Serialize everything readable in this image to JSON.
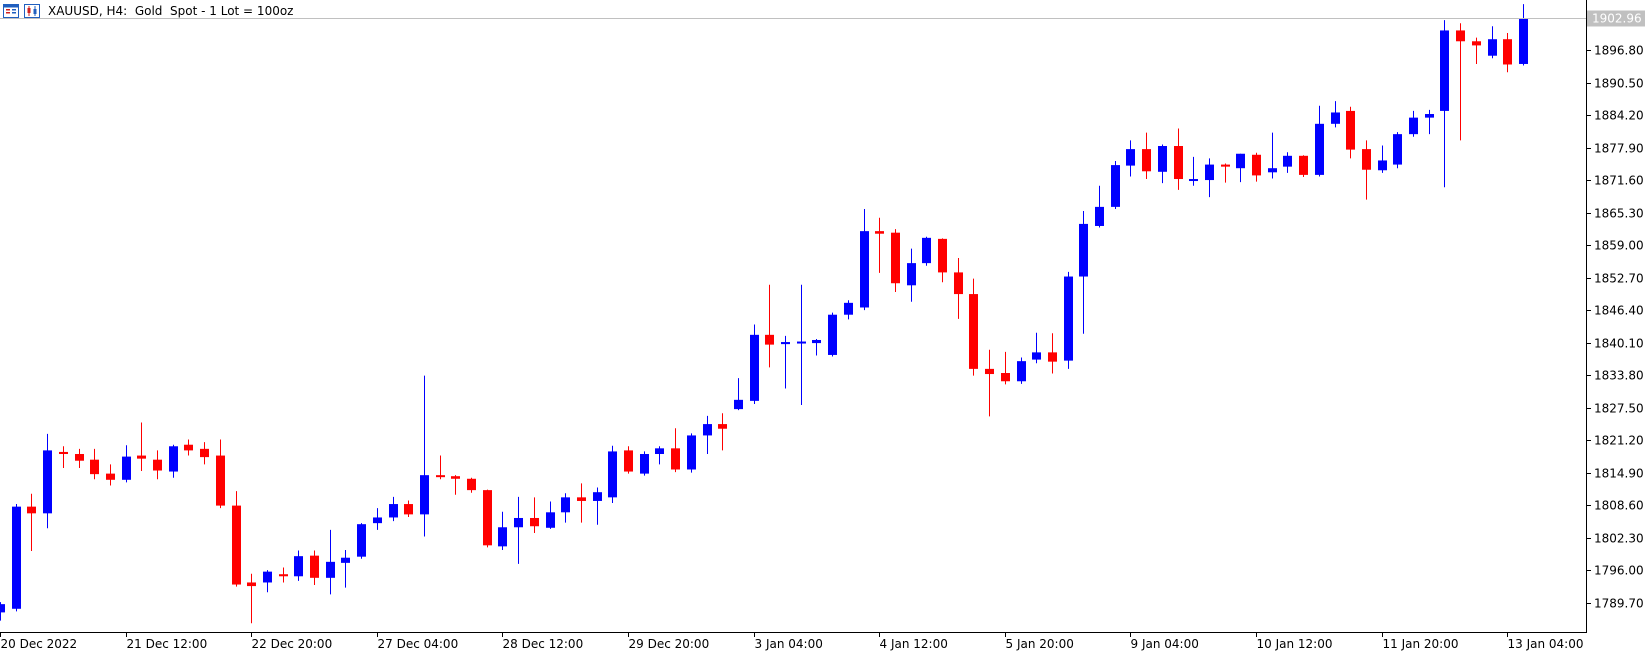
{
  "header": {
    "title": "XAUUSD, H4:  Gold  Spot - 1 Lot = 100oz"
  },
  "colors": {
    "bull": "#0000ff",
    "bear": "#ff0000",
    "axis": "#000000",
    "price_tag_bg": "#c0c0c0"
  },
  "chart_data": {
    "type": "candlestick",
    "title": "XAUUSD, H4:  Gold  Spot - 1 Lot = 100oz",
    "ylim": [
      1784.0,
      1906.5
    ],
    "grid": false,
    "current_price": "1902.96",
    "y_ticks": [
      "1896.80",
      "1890.50",
      "1884.20",
      "1877.90",
      "1871.60",
      "1865.30",
      "1859.00",
      "1852.70",
      "1846.40",
      "1840.10",
      "1833.80",
      "1827.50",
      "1821.20",
      "1814.90",
      "1808.60",
      "1802.30",
      "1796.00",
      "1789.70"
    ],
    "x_ticks": [
      {
        "index": 0,
        "label": "20 Dec 2022"
      },
      {
        "index": 8,
        "label": "21 Dec 12:00"
      },
      {
        "index": 16,
        "label": "22 Dec 20:00"
      },
      {
        "index": 24,
        "label": "27 Dec 04:00"
      },
      {
        "index": 32,
        "label": "28 Dec 12:00"
      },
      {
        "index": 40,
        "label": "29 Dec 20:00"
      },
      {
        "index": 48,
        "label": "3 Jan 04:00"
      },
      {
        "index": 56,
        "label": "4 Jan 12:00"
      },
      {
        "index": 64,
        "label": "5 Jan 20:00"
      },
      {
        "index": 72,
        "label": "9 Jan 04:00"
      },
      {
        "index": 80,
        "label": "10 Jan 12:00"
      },
      {
        "index": 88,
        "label": "11 Jan 20:00"
      },
      {
        "index": 96,
        "label": "13 Jan 04:00"
      }
    ],
    "candles": [
      [
        1787.8,
        1789.4,
        1786.2,
        1789.8
      ],
      [
        1788.5,
        1808.3,
        1788.0,
        1808.8
      ],
      [
        1808.3,
        1807.0,
        1799.7,
        1810.8
      ],
      [
        1807.0,
        1819.2,
        1804.1,
        1822.4
      ],
      [
        1818.9,
        1818.5,
        1815.8,
        1820.0
      ],
      [
        1818.5,
        1817.2,
        1815.8,
        1819.5
      ],
      [
        1817.4,
        1814.6,
        1813.6,
        1819.5
      ],
      [
        1814.7,
        1813.5,
        1812.4,
        1816.5
      ],
      [
        1813.5,
        1818.0,
        1813.0,
        1820.2
      ],
      [
        1818.2,
        1817.6,
        1815.2,
        1824.6
      ],
      [
        1817.4,
        1815.3,
        1813.6,
        1819.2
      ],
      [
        1815.1,
        1820.0,
        1813.9,
        1820.3
      ],
      [
        1820.3,
        1819.2,
        1818.2,
        1821.3
      ],
      [
        1819.5,
        1817.9,
        1816.5,
        1820.8
      ],
      [
        1818.2,
        1808.5,
        1808.0,
        1821.3
      ],
      [
        1808.5,
        1793.2,
        1792.8,
        1811.3
      ],
      [
        1793.6,
        1792.9,
        1785.7,
        1795.3
      ],
      [
        1793.6,
        1795.7,
        1791.7,
        1796.0
      ],
      [
        1795.2,
        1794.8,
        1793.6,
        1796.5
      ],
      [
        1794.8,
        1798.7,
        1793.9,
        1799.8
      ],
      [
        1798.8,
        1794.5,
        1793.1,
        1799.8
      ],
      [
        1794.5,
        1797.6,
        1791.3,
        1803.8
      ],
      [
        1797.4,
        1798.4,
        1792.6,
        1799.9
      ],
      [
        1798.6,
        1804.9,
        1798.2,
        1805.1
      ],
      [
        1805.1,
        1806.2,
        1803.8,
        1808.0
      ],
      [
        1806.2,
        1808.8,
        1805.5,
        1810.2
      ],
      [
        1808.8,
        1806.8,
        1806.3,
        1809.5
      ],
      [
        1806.8,
        1814.4,
        1802.5,
        1833.7
      ],
      [
        1814.4,
        1814.2,
        1813.6,
        1818.2
      ],
      [
        1814.2,
        1813.7,
        1810.6,
        1814.4
      ],
      [
        1813.7,
        1811.5,
        1811.0,
        1813.9
      ],
      [
        1811.5,
        1800.8,
        1800.4,
        1811.6
      ],
      [
        1800.6,
        1804.3,
        1799.9,
        1807.3
      ],
      [
        1804.3,
        1806.1,
        1797.2,
        1810.2
      ],
      [
        1806.1,
        1804.5,
        1803.2,
        1810.1
      ],
      [
        1804.2,
        1807.2,
        1804.0,
        1809.3
      ],
      [
        1807.2,
        1810.1,
        1805.2,
        1810.9
      ],
      [
        1810.1,
        1809.4,
        1805.2,
        1812.8
      ],
      [
        1809.4,
        1811.1,
        1804.8,
        1812.0
      ],
      [
        1810.1,
        1819.0,
        1809.0,
        1820.1
      ],
      [
        1819.2,
        1815.1,
        1814.7,
        1820.0
      ],
      [
        1814.7,
        1818.5,
        1814.3,
        1819.0
      ],
      [
        1818.5,
        1819.6,
        1816.5,
        1820.0
      ],
      [
        1819.6,
        1815.5,
        1815.0,
        1823.5
      ],
      [
        1815.5,
        1822.1,
        1814.9,
        1822.5
      ],
      [
        1822.1,
        1824.3,
        1818.5,
        1825.9
      ],
      [
        1824.3,
        1823.4,
        1819.2,
        1826.4
      ],
      [
        1827.2,
        1829.0,
        1827.0,
        1833.2
      ],
      [
        1828.8,
        1841.6,
        1828.2,
        1843.6
      ],
      [
        1841.6,
        1839.7,
        1835.3,
        1851.3
      ],
      [
        1839.8,
        1840.2,
        1831.2,
        1841.4
      ],
      [
        1840.0,
        1840.3,
        1828.0,
        1851.3
      ],
      [
        1840.0,
        1840.6,
        1837.6,
        1840.8
      ],
      [
        1837.7,
        1845.5,
        1837.4,
        1845.9
      ],
      [
        1845.5,
        1847.8,
        1844.6,
        1848.3
      ],
      [
        1846.9,
        1861.7,
        1846.4,
        1866.0
      ],
      [
        1861.7,
        1861.2,
        1853.6,
        1864.3
      ],
      [
        1861.4,
        1851.6,
        1849.9,
        1862.1
      ],
      [
        1851.2,
        1855.5,
        1848.0,
        1858.3
      ],
      [
        1855.5,
        1860.4,
        1855.0,
        1860.6
      ],
      [
        1860.2,
        1853.7,
        1851.8,
        1860.3
      ],
      [
        1853.7,
        1849.5,
        1844.7,
        1856.5
      ],
      [
        1849.5,
        1835.0,
        1833.7,
        1852.5
      ],
      [
        1835.0,
        1834.0,
        1825.8,
        1838.7
      ],
      [
        1834.2,
        1832.6,
        1832.0,
        1838.3
      ],
      [
        1832.6,
        1836.5,
        1832.1,
        1837.2
      ],
      [
        1836.8,
        1838.2,
        1836.1,
        1842.0
      ],
      [
        1838.2,
        1836.4,
        1834.1,
        1841.9
      ],
      [
        1836.6,
        1852.9,
        1835.0,
        1853.8
      ],
      [
        1852.9,
        1863.1,
        1841.8,
        1865.6
      ],
      [
        1862.7,
        1866.4,
        1862.4,
        1870.5
      ],
      [
        1866.4,
        1874.5,
        1866.0,
        1875.3
      ],
      [
        1874.4,
        1877.6,
        1872.3,
        1879.3
      ],
      [
        1877.6,
        1873.3,
        1871.8,
        1880.8
      ],
      [
        1873.2,
        1878.2,
        1871.0,
        1878.5
      ],
      [
        1878.2,
        1871.8,
        1869.7,
        1881.6
      ],
      [
        1871.8,
        1871.8,
        1870.5,
        1876.1
      ],
      [
        1871.6,
        1874.6,
        1868.3,
        1875.8
      ],
      [
        1874.6,
        1874.2,
        1871.1,
        1874.8
      ],
      [
        1873.9,
        1876.7,
        1871.2,
        1876.7
      ],
      [
        1876.5,
        1872.5,
        1871.3,
        1876.9
      ],
      [
        1873.1,
        1873.9,
        1871.9,
        1880.8
      ],
      [
        1874.2,
        1876.3,
        1873.0,
        1877.0
      ],
      [
        1876.3,
        1872.6,
        1872.2,
        1876.4
      ],
      [
        1872.6,
        1882.5,
        1872.3,
        1886.0
      ],
      [
        1882.5,
        1884.7,
        1881.8,
        1886.9
      ],
      [
        1885.0,
        1877.5,
        1875.8,
        1885.8
      ],
      [
        1877.6,
        1873.6,
        1867.8,
        1879.3
      ],
      [
        1873.5,
        1875.4,
        1873.0,
        1878.3
      ],
      [
        1874.6,
        1880.5,
        1873.9,
        1880.9
      ],
      [
        1880.5,
        1883.7,
        1880.0,
        1885.0
      ],
      [
        1883.7,
        1884.4,
        1880.5,
        1885.2
      ],
      [
        1885.0,
        1900.6,
        1870.2,
        1902.6
      ],
      [
        1900.6,
        1898.5,
        1879.3,
        1902.0
      ],
      [
        1898.5,
        1897.7,
        1894.1,
        1899.2
      ],
      [
        1895.7,
        1898.9,
        1895.2,
        1901.4
      ],
      [
        1898.9,
        1894.0,
        1892.5,
        1900.1
      ],
      [
        1894.1,
        1902.9,
        1893.8,
        1905.7
      ]
    ]
  }
}
